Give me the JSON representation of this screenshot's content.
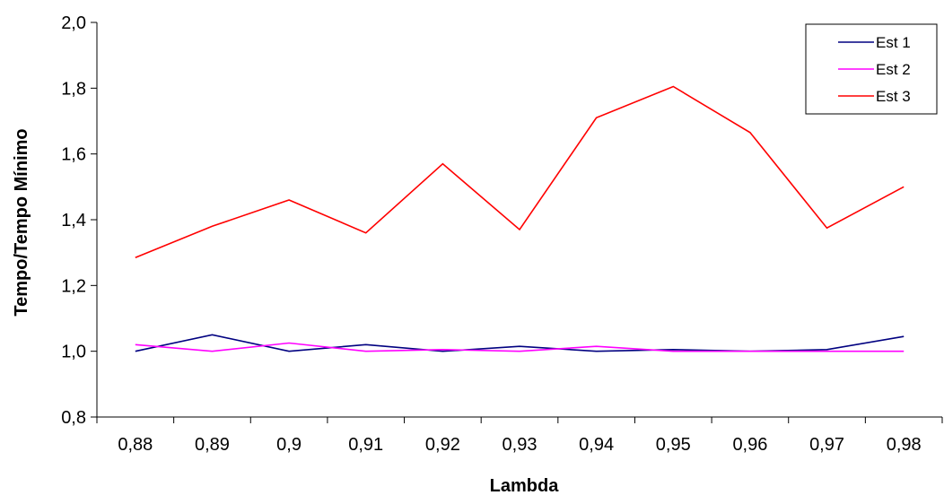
{
  "chart_data": {
    "type": "line",
    "title": "",
    "xlabel": "Lambda",
    "ylabel": "Tempo/Tempo Mínimo",
    "categories": [
      "0,88",
      "0,89",
      "0,9",
      "0,91",
      "0,92",
      "0,93",
      "0,94",
      "0,95",
      "0,96",
      "0,97",
      "0,98"
    ],
    "ylim": [
      0.8,
      2.0
    ],
    "yticks": [
      0.8,
      1.0,
      1.2,
      1.4,
      1.6,
      1.8,
      2.0
    ],
    "ytick_labels": [
      "0,8",
      "1,0",
      "1,2",
      "1,4",
      "1,6",
      "1,8",
      "2,0"
    ],
    "grid": false,
    "legend_position": "top-right",
    "series": [
      {
        "name": "Est 1",
        "color": "#000080",
        "values": [
          1.0,
          1.05,
          1.0,
          1.02,
          1.0,
          1.015,
          1.0,
          1.005,
          1.0,
          1.005,
          1.045
        ]
      },
      {
        "name": "Est 2",
        "color": "#ff00ff",
        "values": [
          1.02,
          1.0,
          1.025,
          1.0,
          1.005,
          1.0,
          1.015,
          1.0,
          1.0,
          1.0,
          1.0
        ]
      },
      {
        "name": "Est 3",
        "color": "#ff0000",
        "values": [
          1.285,
          1.38,
          1.46,
          1.36,
          1.57,
          1.37,
          1.71,
          1.805,
          1.665,
          1.375,
          1.5
        ]
      }
    ]
  }
}
